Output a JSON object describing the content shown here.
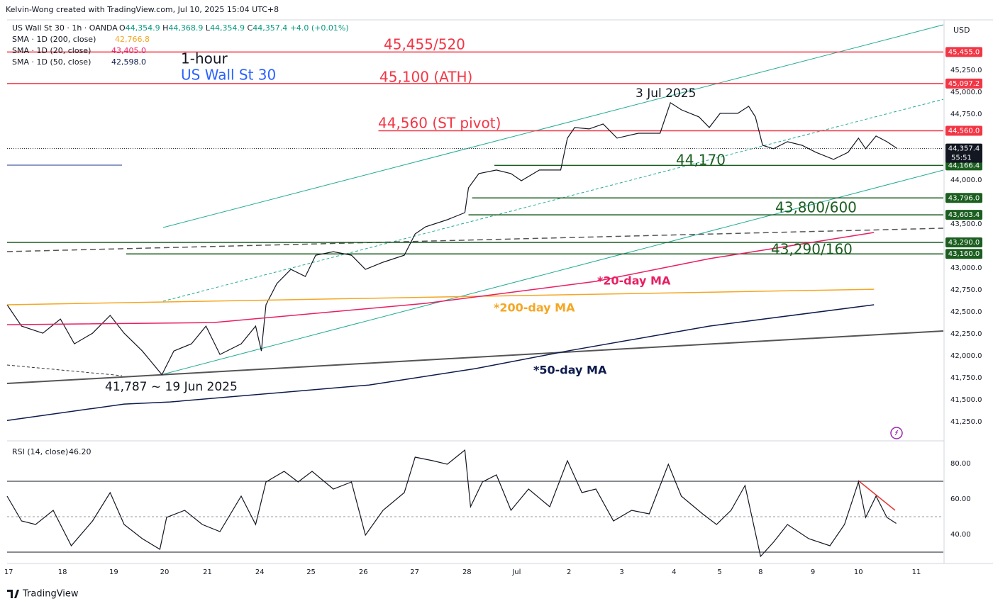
{
  "header": {
    "credit": "Kelvin-Wong created with TradingView.com, Jul 10, 2025 15:04 UTC+8",
    "symbol": "US Wall St 30 · 1h · OANDA",
    "ohlc": [
      [
        "O",
        "44,354.9"
      ],
      [
        "H",
        "44,368.9"
      ],
      [
        "L",
        "44,354.9"
      ],
      [
        "C",
        "44,357.4"
      ],
      [
        "",
        "+4.0 (+0.01%)"
      ]
    ],
    "sma": [
      {
        "name": "SMA · 1D (200, close)",
        "value": "42,766.8",
        "color": "#f5a623"
      },
      {
        "name": "SMA · 1D (20, close)",
        "value": "43,405.0",
        "color": "#e91e63"
      },
      {
        "name": "SMA · 1D (50, close)",
        "value": "42,598.0",
        "color": "#0d1b4c"
      }
    ],
    "currency": "USD",
    "countdown": "55:51",
    "footer": "TradingView"
  },
  "chart_data": [
    {
      "type": "line",
      "title": "US Wall St 30",
      "subtitle": "1-hour",
      "xlim": [
        -0.03,
        18.05
      ],
      "ylim": [
        41050,
        45805
      ],
      "yticks": [
        {
          "value": 41250,
          "label": "41,250.0"
        },
        {
          "value": 41500,
          "label": "41,500.0"
        },
        {
          "value": 41750,
          "label": "41,750.0"
        },
        {
          "value": 42000,
          "label": "42,000.0"
        },
        {
          "value": 42250,
          "label": "42,250.0"
        },
        {
          "value": 42500,
          "label": "42,500.0"
        },
        {
          "value": 42750,
          "label": "42,750.0"
        },
        {
          "value": 43000,
          "label": "43,000.0"
        },
        {
          "value": 43500,
          "label": "43,500.0"
        },
        {
          "value": 44000,
          "label": "44,000.0"
        },
        {
          "value": 44750,
          "label": "44,750.0"
        },
        {
          "value": 45000,
          "label": "45,000.0"
        },
        {
          "value": 45250,
          "label": "45,250.0"
        }
      ],
      "series": [
        {
          "color": "#131722",
          "x": [
            -0.03,
            0.25,
            0.66,
            1.0,
            1.27,
            1.62,
            1.96,
            2.23,
            2.58,
            2.96,
            3.19,
            3.53,
            3.81,
            4.08,
            4.49,
            4.77,
            4.88,
            4.97,
            5.18,
            5.45,
            5.73,
            5.93,
            6.27,
            6.62,
            6.89,
            7.23,
            7.64,
            7.85,
            8.05,
            8.47,
            8.81,
            8.88,
            9.08,
            9.42,
            9.7,
            9.9,
            10.25,
            10.66,
            10.79,
            10.93,
            11.21,
            11.48,
            11.75,
            12.16,
            12.58,
            12.78,
            12.99,
            13.33,
            13.53,
            13.74,
            14.08,
            14.29,
            14.42,
            14.56,
            14.77,
            15.04,
            15.32,
            15.59,
            15.93,
            16.21,
            16.41,
            16.55,
            16.75,
            16.96,
            17.16
          ],
          "values": [
            42581,
            42339,
            42258,
            42419,
            42137,
            42258,
            42460,
            42258,
            42056,
            41787,
            42056,
            42137,
            42339,
            42016,
            42137,
            42339,
            42056,
            42581,
            42823,
            42984,
            42903,
            43145,
            43185,
            43145,
            42984,
            43065,
            43145,
            43387,
            43468,
            43548,
            43629,
            43911,
            44073,
            44113,
            44073,
            43992,
            44113,
            44113,
            44476,
            44597,
            44581,
            44637,
            44476,
            44532,
            44532,
            44879,
            44798,
            44718,
            44597,
            44758,
            44758,
            44839,
            44718,
            44395,
            44355,
            44436,
            44395,
            44315,
            44234,
            44315,
            44476,
            44355,
            44500,
            44436,
            44357.4
          ]
        },
        {
          "name": "*200-day MA",
          "color": "#f5a623",
          "x": [
            -0.03,
            16.71
          ],
          "values": [
            42581,
            42758
          ]
        },
        {
          "name": "*20-day MA",
          "color": "#e91e63",
          "x": [
            -0.03,
            3.95,
            8.05,
            11.34,
            13.53,
            16.71
          ],
          "values": [
            42355,
            42379,
            42597,
            42847,
            43105,
            43403
          ]
        },
        {
          "name": "*50-day MA",
          "color": "#0d1b4c",
          "x": [
            -0.03,
            2.23,
            3.12,
            6.96,
            9.01,
            10.79,
            13.53,
            16.71
          ],
          "values": [
            41266,
            41452,
            41476,
            41669,
            41855,
            42056,
            42339,
            42581
          ]
        }
      ],
      "levels": [
        {
          "value": 45455,
          "label": "45,455.0",
          "color": "#f23645",
          "start": -0.03
        },
        {
          "value": 45097.2,
          "label": "45,097.2",
          "color": "#f23645",
          "start": -0.03
        },
        {
          "value": 44560,
          "label": "44,560.0",
          "color": "#f23645",
          "start": 7.14
        },
        {
          "value": 44166.4,
          "label": "44,166.4",
          "color": "#1b5e20",
          "start": 9.38
        },
        {
          "value": 43796,
          "label": "43,796.0",
          "color": "#1b5e20",
          "start": 8.95
        },
        {
          "value": 43603.4,
          "label": "43,603.4",
          "color": "#1b5e20",
          "start": 8.88
        },
        {
          "value": 43290,
          "label": "43,290.0",
          "color": "#1b5e20",
          "start": -0.03
        },
        {
          "value": 43160,
          "label": "43,160.0",
          "color": "#1b5e20",
          "start": 2.27
        }
      ],
      "last": {
        "value": 44357.4,
        "label": "44,357.4"
      },
      "annotations": [
        "45,455/520",
        "45,100 (ATH)",
        "44,560 (ST pivot)",
        "44,170",
        "43,800/600",
        "43,290/160",
        "3 Jul 2025",
        "41,787 ~ 19 Jun 2025"
      ]
    },
    {
      "type": "line",
      "title": "RSI (14, close)",
      "value_label": "46.20",
      "xlim": [
        -0.03,
        18.05
      ],
      "ylim": [
        25.6,
        91.6
      ],
      "yticks": [
        {
          "value": 40,
          "label": "40.00"
        },
        {
          "value": 60,
          "label": "60.00"
        },
        {
          "value": 80,
          "label": "80.00"
        }
      ],
      "bands": [
        30,
        50,
        70
      ],
      "xticks": [
        {
          "value": 0,
          "label": "17"
        },
        {
          "value": 1.04,
          "label": "18"
        },
        {
          "value": 2.03,
          "label": "19"
        },
        {
          "value": 3.01,
          "label": "20"
        },
        {
          "value": 3.84,
          "label": "21"
        },
        {
          "value": 4.85,
          "label": "24"
        },
        {
          "value": 5.84,
          "label": "25"
        },
        {
          "value": 6.85,
          "label": "26"
        },
        {
          "value": 7.84,
          "label": "27"
        },
        {
          "value": 8.85,
          "label": "28"
        },
        {
          "value": 9.81,
          "label": "Jul"
        },
        {
          "value": 10.82,
          "label": "2"
        },
        {
          "value": 11.84,
          "label": "3"
        },
        {
          "value": 12.85,
          "label": "4"
        },
        {
          "value": 13.73,
          "label": "5"
        },
        {
          "value": 14.52,
          "label": "8"
        },
        {
          "value": 15.53,
          "label": "9"
        },
        {
          "value": 16.41,
          "label": "10"
        },
        {
          "value": 17.53,
          "label": "11"
        }
      ],
      "series": [
        {
          "color": "#131722",
          "x": [
            -0.03,
            0.25,
            0.52,
            0.86,
            1.21,
            1.62,
            1.96,
            2.23,
            2.58,
            2.92,
            3.05,
            3.4,
            3.74,
            4.08,
            4.49,
            4.77,
            4.97,
            5.32,
            5.59,
            5.86,
            6.27,
            6.62,
            6.89,
            7.23,
            7.64,
            7.85,
            8.19,
            8.47,
            8.81,
            8.92,
            9.15,
            9.42,
            9.7,
            10.04,
            10.45,
            10.79,
            11.07,
            11.34,
            11.68,
            12.03,
            12.37,
            12.74,
            12.99,
            13.4,
            13.67,
            13.95,
            14.22,
            14.52,
            14.77,
            15.04,
            15.45,
            15.86,
            16.14,
            16.41,
            16.55,
            16.75,
            16.96,
            17.14
          ],
          "values": [
            61.6,
            47.6,
            45.6,
            53.6,
            33.6,
            47.6,
            63.6,
            45.6,
            37.6,
            31.6,
            49.6,
            53.6,
            45.6,
            41.6,
            61.6,
            45.6,
            69.6,
            75.6,
            69.6,
            75.6,
            65.6,
            69.6,
            39.6,
            53.6,
            63.6,
            83.6,
            81.6,
            79.6,
            87.6,
            55.6,
            69.6,
            73.6,
            53.6,
            65.6,
            55.6,
            81.6,
            63.6,
            65.6,
            47.6,
            53.6,
            51.6,
            79.6,
            61.6,
            51.6,
            45.6,
            53.6,
            67.6,
            27.6,
            35.6,
            45.6,
            37.6,
            33.6,
            45.6,
            69.6,
            49.6,
            61.6,
            49.6,
            46.2
          ]
        }
      ]
    }
  ]
}
